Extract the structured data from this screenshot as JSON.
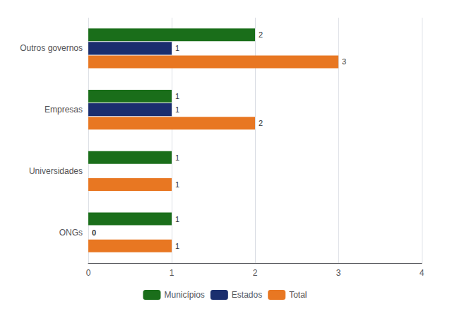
{
  "chart_data": {
    "type": "bar",
    "orientation": "horizontal",
    "categories": [
      "Outros governos",
      "Empresas",
      "Universidades",
      "ONGs"
    ],
    "series": [
      {
        "name": "Municípios",
        "color": "#1a6e1a",
        "values": [
          2,
          1,
          1,
          1
        ]
      },
      {
        "name": "Estados",
        "color": "#1a2e6e",
        "values": [
          1,
          1,
          0,
          0
        ],
        "value_labels": [
          "1",
          "1",
          null,
          "0"
        ]
      },
      {
        "name": "Total",
        "color": "#e87722",
        "values": [
          3,
          2,
          1,
          1
        ]
      }
    ],
    "xlim": [
      0,
      4
    ],
    "xticks": [
      0,
      1,
      2,
      3,
      4
    ],
    "grid": true,
    "legend": "bottom",
    "data_labels": true
  }
}
